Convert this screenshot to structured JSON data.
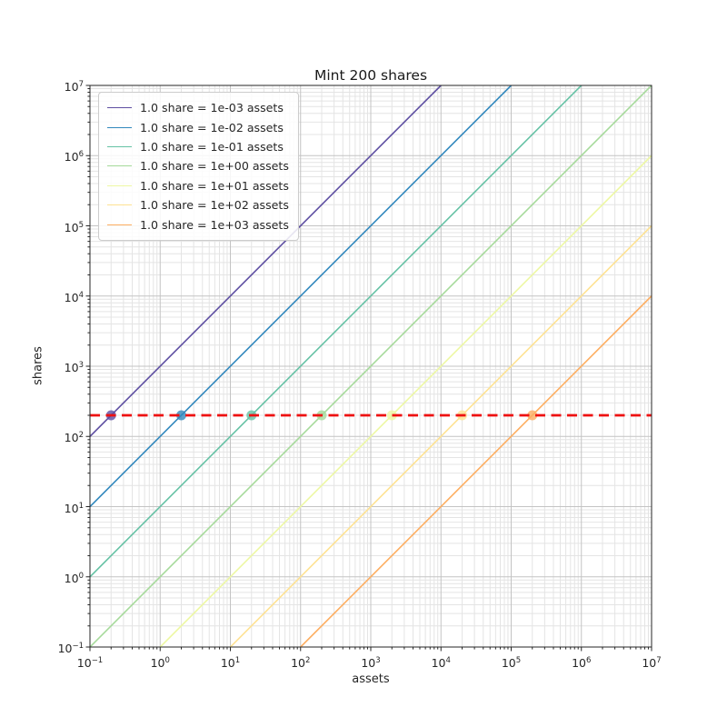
{
  "figure": {
    "title": "Mint 200 shares",
    "xlabel": "assets",
    "ylabel": "shares"
  },
  "chart_data": {
    "type": "line",
    "title": "Mint 200 shares",
    "xlabel": "assets",
    "ylabel": "shares",
    "xscale": "log",
    "yscale": "log",
    "xlim": [
      0.1,
      10000000
    ],
    "ylim": [
      0.1,
      10000000
    ],
    "x_tick_exponents": [
      -1,
      0,
      1,
      2,
      3,
      4,
      5,
      6,
      7
    ],
    "y_tick_exponents": [
      -1,
      0,
      1,
      2,
      3,
      4,
      5,
      6,
      7
    ],
    "grid": {
      "which": "both",
      "major_color": "#c3c3c3",
      "minor_color": "#e4e4e4"
    },
    "target_line": {
      "y": 200,
      "color": "#ee1111",
      "linestyle": "dashed",
      "meaning": "200 shares target"
    },
    "legend": {
      "loc": "upper left"
    },
    "series": [
      {
        "label": "1.0 share = 1e-03 assets",
        "assets_per_share": 0.001,
        "color": "#5e4fa2",
        "line_points": {
          "x": [
            0.1,
            10000
          ],
          "y": [
            100,
            10000000
          ]
        },
        "marker": {
          "x": 0.2,
          "y": 200
        }
      },
      {
        "label": "1.0 share = 1e-02 assets",
        "assets_per_share": 0.01,
        "color": "#3288bd",
        "line_points": {
          "x": [
            0.1,
            100000
          ],
          "y": [
            10,
            10000000
          ]
        },
        "marker": {
          "x": 2,
          "y": 200
        }
      },
      {
        "label": "1.0 share = 1e-01 assets",
        "assets_per_share": 0.1,
        "color": "#66c2a5",
        "line_points": {
          "x": [
            0.1,
            1000000
          ],
          "y": [
            1,
            10000000
          ]
        },
        "marker": {
          "x": 20,
          "y": 200
        }
      },
      {
        "label": "1.0 share = 1e+00 assets",
        "assets_per_share": 1,
        "color": "#a6da9b",
        "line_points": {
          "x": [
            0.1,
            10000000
          ],
          "y": [
            0.1,
            10000000
          ]
        },
        "marker": {
          "x": 200,
          "y": 200
        }
      },
      {
        "label": "1.0 share = 1e+01 assets",
        "assets_per_share": 10,
        "color": "#edf8a3",
        "line_points": {
          "x": [
            1,
            10000000
          ],
          "y": [
            0.1,
            1000000
          ]
        },
        "marker": {
          "x": 2000,
          "y": 200
        }
      },
      {
        "label": "1.0 share = 1e+02 assets",
        "assets_per_share": 100,
        "color": "#fee292",
        "line_points": {
          "x": [
            10,
            10000000
          ],
          "y": [
            0.1,
            100000
          ]
        },
        "marker": {
          "x": 20000,
          "y": 200
        }
      },
      {
        "label": "1.0 share = 1e+03 assets",
        "assets_per_share": 1000,
        "color": "#fdae61",
        "line_points": {
          "x": [
            100,
            10000000
          ],
          "y": [
            0.1,
            10000
          ]
        },
        "marker": {
          "x": 200000,
          "y": 200
        }
      }
    ]
  }
}
